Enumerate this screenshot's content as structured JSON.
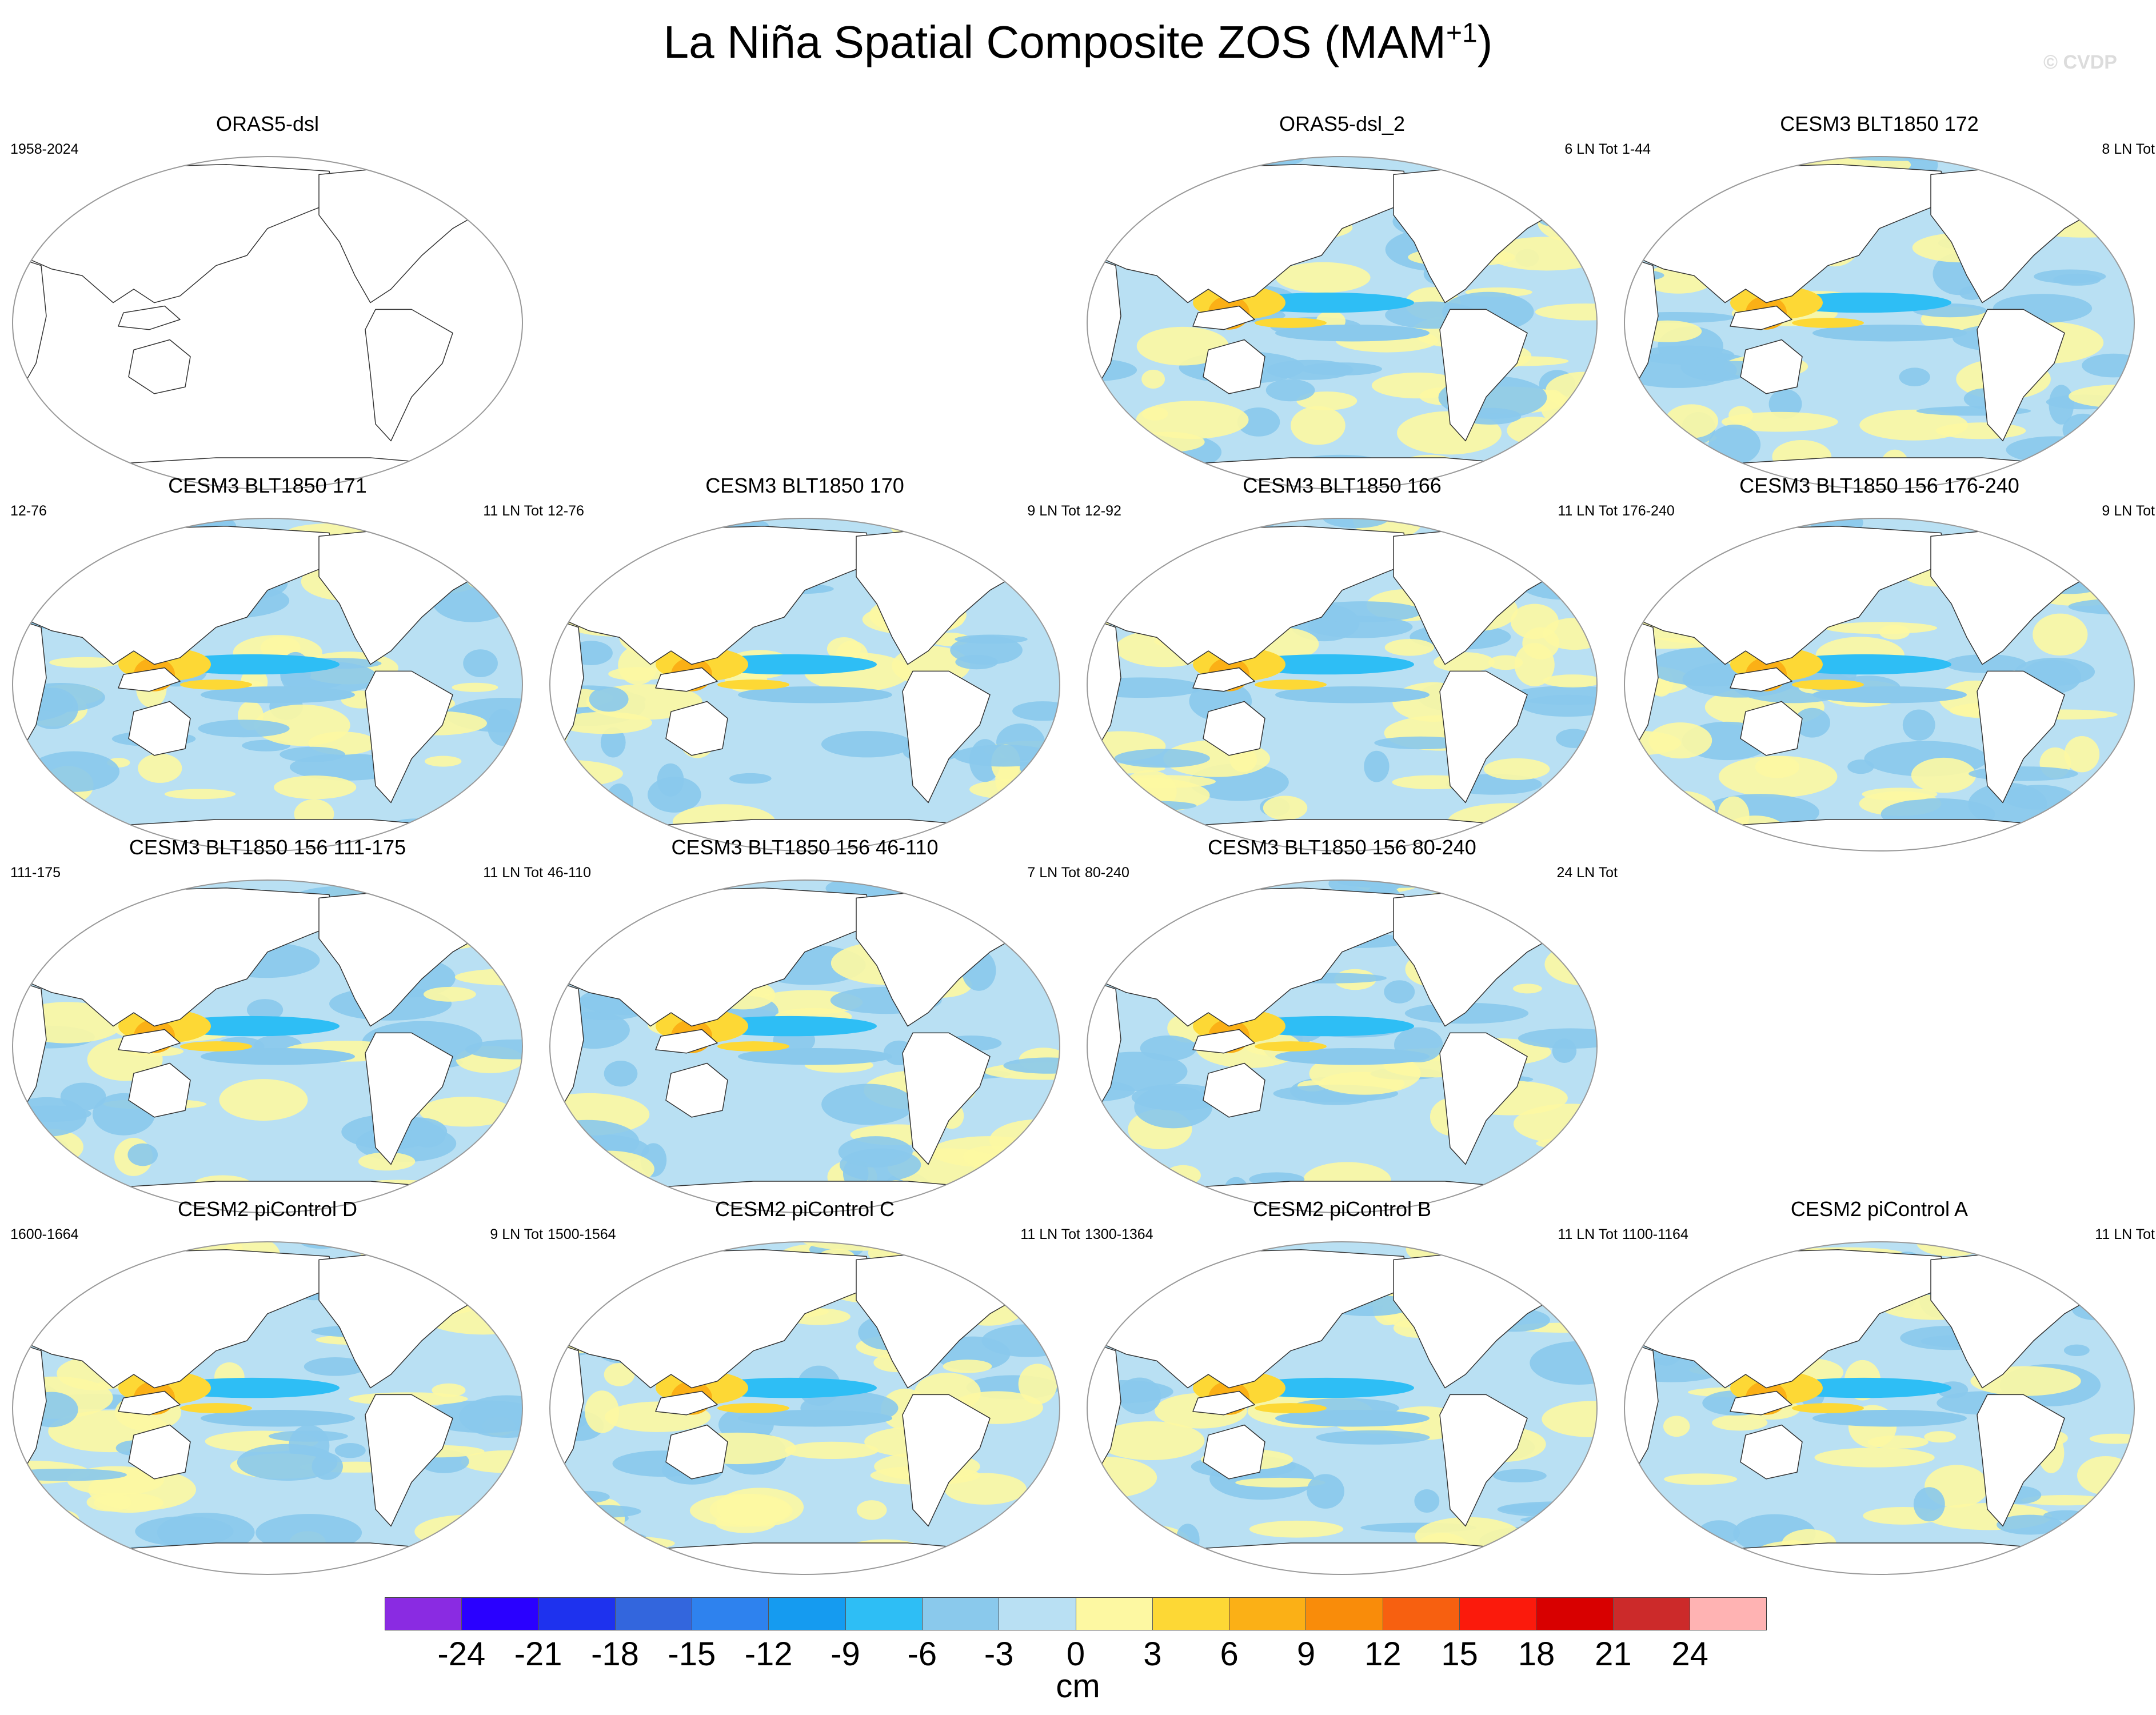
{
  "title_main": "La Niña Spatial Composite ZOS (MAM",
  "title_sup": "+1",
  "title_close": ")",
  "credit": "© CVDP",
  "panels": [
    {
      "title": "ORAS5-dsl",
      "left": "1958-2024",
      "right": "",
      "blank": true
    },
    null,
    {
      "title": "ORAS5-dsl_2",
      "left": "",
      "right": "6 LN Tot"
    },
    {
      "title": "CESM3 BLT1850 172",
      "left": "1-44",
      "right": "8 LN Tot"
    },
    {
      "title": "CESM3 BLT1850 171",
      "left": "12-76",
      "right": "11 LN Tot"
    },
    {
      "title": "CESM3 BLT1850 170",
      "left": "12-76",
      "right": "9 LN Tot"
    },
    {
      "title": "CESM3 BLT1850 166",
      "left": "12-92",
      "right": "11 LN Tot"
    },
    {
      "title": "CESM3 BLT1850 156 176-240",
      "left": "176-240",
      "right": "9 LN Tot"
    },
    {
      "title": "CESM3 BLT1850 156 111-175",
      "left": "111-175",
      "right": "11 LN Tot"
    },
    {
      "title": "CESM3 BLT1850 156 46-110",
      "left": "46-110",
      "right": "7 LN Tot"
    },
    {
      "title": "CESM3 BLT1850 156 80-240",
      "left": "80-240",
      "right": "24 LN Tot"
    },
    null,
    {
      "title": "CESM2 piControl D",
      "left": "1600-1664",
      "right": "9 LN Tot"
    },
    {
      "title": "CESM2 piControl C",
      "left": "1500-1564",
      "right": "11 LN Tot"
    },
    {
      "title": "CESM2 piControl B",
      "left": "1300-1364",
      "right": "11 LN Tot"
    },
    {
      "title": "CESM2 piControl A",
      "left": "1100-1164",
      "right": "11 LN Tot"
    }
  ],
  "colorbar": {
    "colors": [
      "#8a2be2",
      "#2a00ff",
      "#1e32ee",
      "#3366dd",
      "#2e82ee",
      "#159bf0",
      "#2ebef5",
      "#8ac9ec",
      "#b9e0f3",
      "#fdf8a2",
      "#fdd835",
      "#fbb016",
      "#f98c0a",
      "#f76010",
      "#fb1a0c",
      "#d80000",
      "#cc2a2a",
      "#ffb3b3"
    ],
    "ticks": [
      "-24",
      "-21",
      "-18",
      "-15",
      "-12",
      "-9",
      "-6",
      "-3",
      "0",
      "3",
      "6",
      "9",
      "12",
      "15",
      "18",
      "21",
      "24"
    ],
    "units": "cm"
  }
}
